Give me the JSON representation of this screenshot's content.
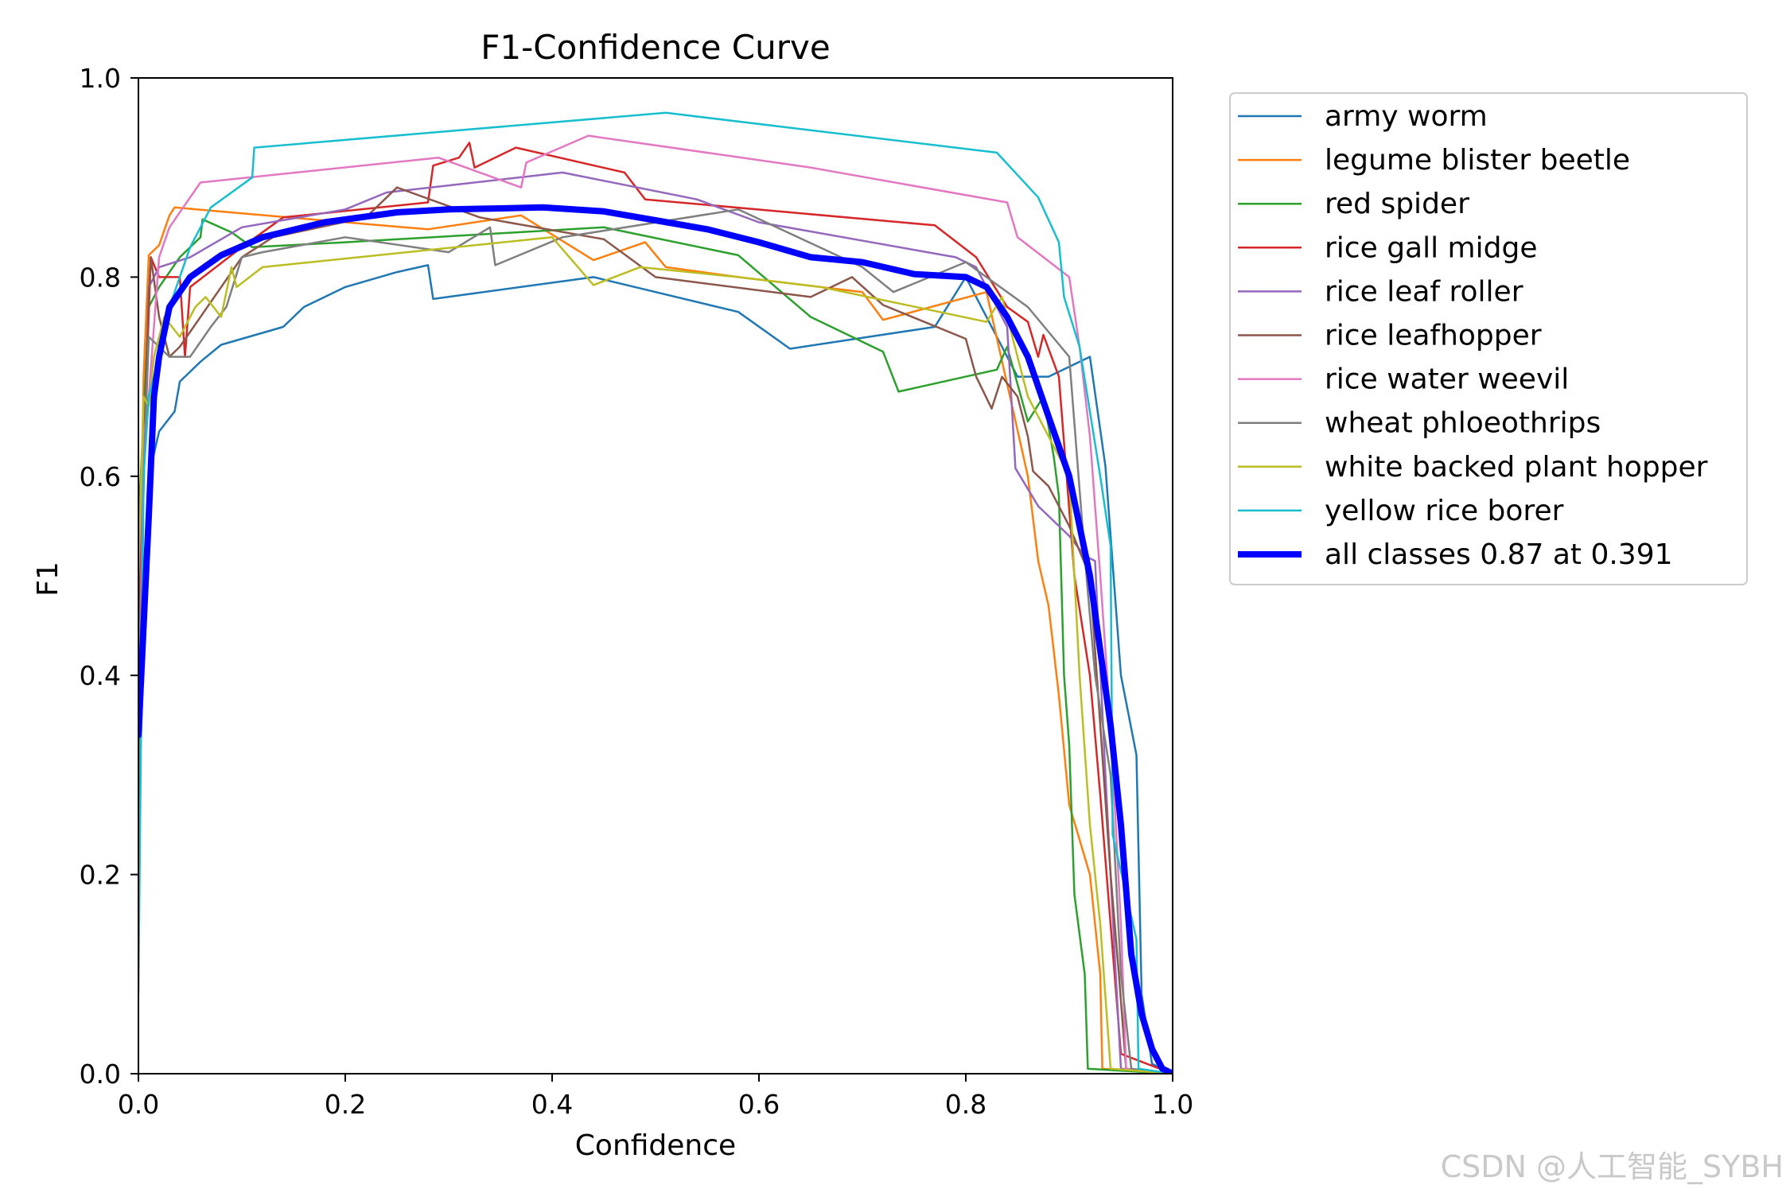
{
  "chart_data": {
    "type": "line",
    "title": "F1-Confidence Curve",
    "xlabel": "Confidence",
    "ylabel": "F1",
    "xlim": [
      0,
      1
    ],
    "ylim": [
      0,
      1
    ],
    "xticks": [
      "0.0",
      "0.2",
      "0.4",
      "0.6",
      "0.8",
      "1.0"
    ],
    "yticks": [
      "0.0",
      "0.2",
      "0.4",
      "0.6",
      "0.8",
      "1.0"
    ],
    "grid": false,
    "legend_position": "outside-right-top",
    "series": [
      {
        "name": "army worm",
        "color": "#1f77b4",
        "width": 2.5,
        "points": [
          [
            0,
            0.25
          ],
          [
            0.01,
            0.6
          ],
          [
            0.02,
            0.645
          ],
          [
            0.035,
            0.665
          ],
          [
            0.04,
            0.695
          ],
          [
            0.06,
            0.715
          ],
          [
            0.08,
            0.732
          ],
          [
            0.14,
            0.75
          ],
          [
            0.16,
            0.77
          ],
          [
            0.2,
            0.79
          ],
          [
            0.25,
            0.805
          ],
          [
            0.28,
            0.812
          ],
          [
            0.285,
            0.778
          ],
          [
            0.44,
            0.8
          ],
          [
            0.58,
            0.765
          ],
          [
            0.63,
            0.728
          ],
          [
            0.77,
            0.75
          ],
          [
            0.8,
            0.8
          ],
          [
            0.85,
            0.7
          ],
          [
            0.88,
            0.7
          ],
          [
            0.92,
            0.72
          ],
          [
            0.935,
            0.61
          ],
          [
            0.95,
            0.4
          ],
          [
            0.965,
            0.32
          ],
          [
            0.97,
            0.08
          ],
          [
            0.98,
            0.01
          ],
          [
            1,
            0
          ]
        ]
      },
      {
        "name": "legume blister beetle",
        "color": "#ff7f0e",
        "width": 2.5,
        "points": [
          [
            0,
            0.4
          ],
          [
            0.005,
            0.7
          ],
          [
            0.01,
            0.822
          ],
          [
            0.02,
            0.832
          ],
          [
            0.03,
            0.862
          ],
          [
            0.035,
            0.87
          ],
          [
            0.1,
            0.864
          ],
          [
            0.28,
            0.848
          ],
          [
            0.37,
            0.862
          ],
          [
            0.44,
            0.817
          ],
          [
            0.49,
            0.835
          ],
          [
            0.51,
            0.81
          ],
          [
            0.58,
            0.8
          ],
          [
            0.7,
            0.785
          ],
          [
            0.72,
            0.757
          ],
          [
            0.82,
            0.785
          ],
          [
            0.86,
            0.6
          ],
          [
            0.87,
            0.515
          ],
          [
            0.88,
            0.47
          ],
          [
            0.89,
            0.38
          ],
          [
            0.9,
            0.27
          ],
          [
            0.92,
            0.2
          ],
          [
            0.93,
            0.1
          ],
          [
            0.932,
            0.005
          ],
          [
            1,
            0
          ]
        ]
      },
      {
        "name": "red spider",
        "color": "#2ca02c",
        "width": 2.5,
        "points": [
          [
            0,
            0.55
          ],
          [
            0.01,
            0.77
          ],
          [
            0.02,
            0.79
          ],
          [
            0.04,
            0.82
          ],
          [
            0.06,
            0.84
          ],
          [
            0.062,
            0.858
          ],
          [
            0.09,
            0.845
          ],
          [
            0.11,
            0.83
          ],
          [
            0.2,
            0.835
          ],
          [
            0.45,
            0.85
          ],
          [
            0.58,
            0.822
          ],
          [
            0.65,
            0.76
          ],
          [
            0.72,
            0.725
          ],
          [
            0.735,
            0.685
          ],
          [
            0.83,
            0.707
          ],
          [
            0.84,
            0.73
          ],
          [
            0.86,
            0.655
          ],
          [
            0.875,
            0.68
          ],
          [
            0.885,
            0.62
          ],
          [
            0.89,
            0.58
          ],
          [
            0.895,
            0.4
          ],
          [
            0.9,
            0.33
          ],
          [
            0.905,
            0.18
          ],
          [
            0.915,
            0.1
          ],
          [
            0.918,
            0.005
          ],
          [
            1,
            0
          ]
        ]
      },
      {
        "name": "rice gall midge",
        "color": "#d62728",
        "width": 2.5,
        "points": [
          [
            0,
            0.45
          ],
          [
            0.005,
            0.62
          ],
          [
            0.012,
            0.82
          ],
          [
            0.02,
            0.8
          ],
          [
            0.03,
            0.8
          ],
          [
            0.04,
            0.8
          ],
          [
            0.045,
            0.72
          ],
          [
            0.05,
            0.79
          ],
          [
            0.1,
            0.83
          ],
          [
            0.14,
            0.86
          ],
          [
            0.28,
            0.875
          ],
          [
            0.285,
            0.912
          ],
          [
            0.31,
            0.92
          ],
          [
            0.32,
            0.935
          ],
          [
            0.325,
            0.91
          ],
          [
            0.365,
            0.93
          ],
          [
            0.47,
            0.905
          ],
          [
            0.49,
            0.878
          ],
          [
            0.77,
            0.852
          ],
          [
            0.81,
            0.82
          ],
          [
            0.84,
            0.77
          ],
          [
            0.86,
            0.755
          ],
          [
            0.87,
            0.72
          ],
          [
            0.875,
            0.742
          ],
          [
            0.89,
            0.7
          ],
          [
            0.905,
            0.5
          ],
          [
            0.92,
            0.4
          ],
          [
            0.93,
            0.28
          ],
          [
            0.94,
            0.15
          ],
          [
            0.95,
            0.02
          ],
          [
            1,
            0
          ]
        ]
      },
      {
        "name": "rice leaf roller",
        "color": "#9467bd",
        "width": 2.5,
        "points": [
          [
            0,
            0.38
          ],
          [
            0.01,
            0.79
          ],
          [
            0.02,
            0.81
          ],
          [
            0.05,
            0.82
          ],
          [
            0.1,
            0.85
          ],
          [
            0.2,
            0.868
          ],
          [
            0.24,
            0.885
          ],
          [
            0.41,
            0.905
          ],
          [
            0.54,
            0.878
          ],
          [
            0.6,
            0.855
          ],
          [
            0.79,
            0.82
          ],
          [
            0.81,
            0.81
          ],
          [
            0.84,
            0.75
          ],
          [
            0.848,
            0.608
          ],
          [
            0.87,
            0.57
          ],
          [
            0.9,
            0.54
          ],
          [
            0.915,
            0.52
          ],
          [
            0.925,
            0.515
          ],
          [
            0.935,
            0.3
          ],
          [
            0.945,
            0.1
          ],
          [
            0.95,
            0.005
          ],
          [
            1,
            0
          ]
        ]
      },
      {
        "name": "rice leafhopper",
        "color": "#8c564b",
        "width": 2.5,
        "points": [
          [
            0,
            0.5
          ],
          [
            0.005,
            0.62
          ],
          [
            0.01,
            0.78
          ],
          [
            0.012,
            0.82
          ],
          [
            0.02,
            0.76
          ],
          [
            0.03,
            0.72
          ],
          [
            0.04,
            0.73
          ],
          [
            0.1,
            0.82
          ],
          [
            0.13,
            0.84
          ],
          [
            0.22,
            0.86
          ],
          [
            0.25,
            0.89
          ],
          [
            0.33,
            0.86
          ],
          [
            0.45,
            0.838
          ],
          [
            0.5,
            0.8
          ],
          [
            0.65,
            0.78
          ],
          [
            0.69,
            0.8
          ],
          [
            0.72,
            0.772
          ],
          [
            0.8,
            0.738
          ],
          [
            0.81,
            0.7
          ],
          [
            0.825,
            0.668
          ],
          [
            0.835,
            0.7
          ],
          [
            0.85,
            0.68
          ],
          [
            0.86,
            0.64
          ],
          [
            0.865,
            0.605
          ],
          [
            0.88,
            0.59
          ],
          [
            0.9,
            0.55
          ],
          [
            0.92,
            0.5
          ],
          [
            0.93,
            0.35
          ],
          [
            0.94,
            0.2
          ],
          [
            0.948,
            0.1
          ],
          [
            0.955,
            0.005
          ],
          [
            1,
            0
          ]
        ]
      },
      {
        "name": "rice water weevil",
        "color": "#e377c2",
        "width": 2.5,
        "points": [
          [
            0,
            0.3
          ],
          [
            0.005,
            0.64
          ],
          [
            0.01,
            0.68
          ],
          [
            0.02,
            0.82
          ],
          [
            0.03,
            0.85
          ],
          [
            0.05,
            0.88
          ],
          [
            0.06,
            0.895
          ],
          [
            0.29,
            0.92
          ],
          [
            0.37,
            0.89
          ],
          [
            0.375,
            0.915
          ],
          [
            0.435,
            0.942
          ],
          [
            0.65,
            0.91
          ],
          [
            0.84,
            0.875
          ],
          [
            0.85,
            0.84
          ],
          [
            0.9,
            0.8
          ],
          [
            0.91,
            0.73
          ],
          [
            0.92,
            0.64
          ],
          [
            0.93,
            0.5
          ],
          [
            0.94,
            0.35
          ],
          [
            0.95,
            0.15
          ],
          [
            0.955,
            0.005
          ],
          [
            1,
            0
          ]
        ]
      },
      {
        "name": "wheat phloeothrips",
        "color": "#7f7f7f",
        "width": 2.5,
        "points": [
          [
            0,
            0.3
          ],
          [
            0.005,
            0.6
          ],
          [
            0.01,
            0.74
          ],
          [
            0.02,
            0.73
          ],
          [
            0.03,
            0.72
          ],
          [
            0.05,
            0.72
          ],
          [
            0.07,
            0.75
          ],
          [
            0.085,
            0.77
          ],
          [
            0.1,
            0.82
          ],
          [
            0.12,
            0.825
          ],
          [
            0.2,
            0.84
          ],
          [
            0.3,
            0.825
          ],
          [
            0.34,
            0.85
          ],
          [
            0.345,
            0.812
          ],
          [
            0.41,
            0.84
          ],
          [
            0.58,
            0.868
          ],
          [
            0.7,
            0.81
          ],
          [
            0.73,
            0.785
          ],
          [
            0.8,
            0.815
          ],
          [
            0.86,
            0.77
          ],
          [
            0.9,
            0.72
          ],
          [
            0.915,
            0.52
          ],
          [
            0.925,
            0.4
          ],
          [
            0.94,
            0.3
          ],
          [
            0.95,
            0.1
          ],
          [
            0.96,
            0.005
          ],
          [
            1,
            0
          ]
        ]
      },
      {
        "name": "white backed plant hopper",
        "color": "#bcbd22",
        "width": 2.5,
        "points": [
          [
            0,
            0.5
          ],
          [
            0.005,
            0.68
          ],
          [
            0.01,
            0.67
          ],
          [
            0.015,
            0.72
          ],
          [
            0.025,
            0.76
          ],
          [
            0.04,
            0.74
          ],
          [
            0.055,
            0.77
          ],
          [
            0.065,
            0.78
          ],
          [
            0.08,
            0.76
          ],
          [
            0.09,
            0.81
          ],
          [
            0.095,
            0.79
          ],
          [
            0.12,
            0.81
          ],
          [
            0.4,
            0.84
          ],
          [
            0.44,
            0.792
          ],
          [
            0.485,
            0.81
          ],
          [
            0.58,
            0.8
          ],
          [
            0.66,
            0.79
          ],
          [
            0.82,
            0.755
          ],
          [
            0.835,
            0.78
          ],
          [
            0.86,
            0.68
          ],
          [
            0.88,
            0.64
          ],
          [
            0.9,
            0.6
          ],
          [
            0.91,
            0.4
          ],
          [
            0.92,
            0.25
          ],
          [
            0.93,
            0.15
          ],
          [
            0.94,
            0.005
          ],
          [
            1,
            0
          ]
        ]
      },
      {
        "name": "yellow rice borer",
        "color": "#17becf",
        "width": 2.5,
        "points": [
          [
            0,
            0.08
          ],
          [
            0.005,
            0.6
          ],
          [
            0.01,
            0.68
          ],
          [
            0.02,
            0.72
          ],
          [
            0.03,
            0.77
          ],
          [
            0.05,
            0.83
          ],
          [
            0.07,
            0.87
          ],
          [
            0.11,
            0.9
          ],
          [
            0.112,
            0.93
          ],
          [
            0.51,
            0.965
          ],
          [
            0.83,
            0.925
          ],
          [
            0.87,
            0.88
          ],
          [
            0.89,
            0.835
          ],
          [
            0.895,
            0.78
          ],
          [
            0.91,
            0.73
          ],
          [
            0.93,
            0.6
          ],
          [
            0.94,
            0.53
          ],
          [
            0.942,
            0.24
          ],
          [
            0.965,
            0.135
          ],
          [
            0.967,
            0.005
          ],
          [
            1,
            0
          ]
        ]
      },
      {
        "name": "all classes 0.87 at 0.391",
        "color": "#0000ff",
        "width": 8,
        "points": [
          [
            0,
            0.34
          ],
          [
            0.005,
            0.45
          ],
          [
            0.01,
            0.56
          ],
          [
            0.015,
            0.68
          ],
          [
            0.02,
            0.72
          ],
          [
            0.03,
            0.77
          ],
          [
            0.05,
            0.8
          ],
          [
            0.08,
            0.822
          ],
          [
            0.12,
            0.84
          ],
          [
            0.18,
            0.855
          ],
          [
            0.25,
            0.865
          ],
          [
            0.3,
            0.868
          ],
          [
            0.35,
            0.869
          ],
          [
            0.391,
            0.87
          ],
          [
            0.45,
            0.866
          ],
          [
            0.5,
            0.857
          ],
          [
            0.55,
            0.848
          ],
          [
            0.6,
            0.835
          ],
          [
            0.65,
            0.82
          ],
          [
            0.7,
            0.815
          ],
          [
            0.75,
            0.803
          ],
          [
            0.8,
            0.8
          ],
          [
            0.82,
            0.79
          ],
          [
            0.84,
            0.76
          ],
          [
            0.86,
            0.72
          ],
          [
            0.88,
            0.66
          ],
          [
            0.9,
            0.6
          ],
          [
            0.92,
            0.5
          ],
          [
            0.94,
            0.35
          ],
          [
            0.95,
            0.25
          ],
          [
            0.96,
            0.12
          ],
          [
            0.97,
            0.06
          ],
          [
            0.98,
            0.025
          ],
          [
            0.99,
            0.005
          ],
          [
            1,
            0
          ]
        ]
      }
    ]
  },
  "watermark": "CSDN @人工智能_SYBH"
}
